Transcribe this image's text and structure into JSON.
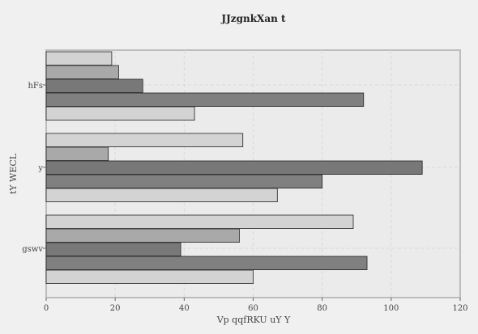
{
  "chart_data": {
    "type": "bar",
    "orientation": "horizontal",
    "title": "JJzgnkXan t",
    "xlabel": "Vp qqfRKU uY Y",
    "ylabel": "tY WECL",
    "xlim": [
      0,
      120
    ],
    "xticks": [
      0,
      20,
      40,
      60,
      80,
      100,
      120
    ],
    "grid": true,
    "categories": [
      "hFs",
      "y",
      "gswv"
    ],
    "series": [
      {
        "values": [
          19,
          57,
          89
        ],
        "color": "#d3d3d3"
      },
      {
        "values": [
          21,
          18,
          56
        ],
        "color": "#a9a9a9"
      },
      {
        "values": [
          28,
          109,
          39
        ],
        "color": "#787878"
      },
      {
        "values": [
          92,
          80,
          93
        ],
        "color": "#808080"
      },
      {
        "values": [
          43,
          67,
          60
        ],
        "color": "#d3d3d3"
      }
    ]
  }
}
